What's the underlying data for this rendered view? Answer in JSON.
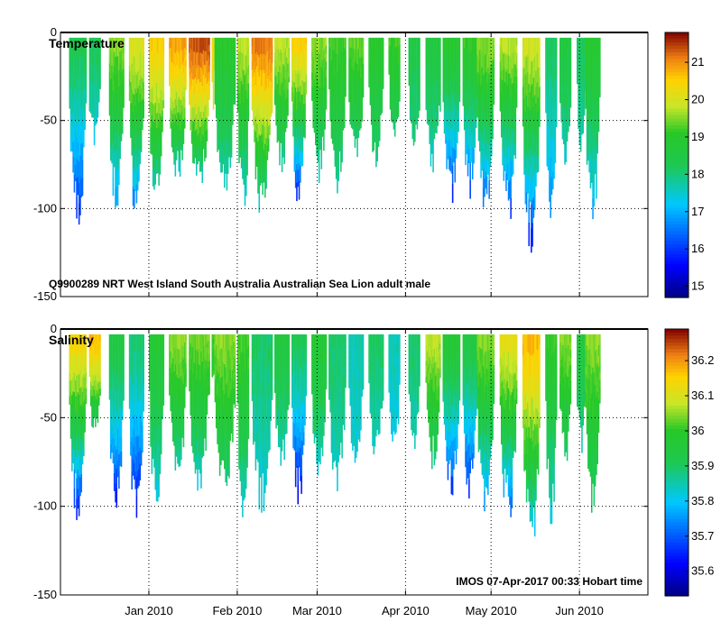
{
  "chart_data": [
    {
      "type": "heatmap",
      "title": "Temperature",
      "annotation": "Q9900289 NRT West Island South Australia Australian Sea Lion adult male",
      "xlabel": "",
      "ylabel": "",
      "ylim": [
        -150,
        0
      ],
      "y_ticks": [
        0,
        -50,
        -100,
        -150
      ],
      "y_tick_labels": [
        "0",
        "-50",
        "-100",
        "-150"
      ],
      "x_tick_labels": [
        "Jan 2010",
        "Feb 2010",
        "Mar 2010",
        "Apr 2010",
        "May 2010",
        "Jun 2010"
      ],
      "x_range_days": [
        0,
        206
      ],
      "x_tick_days": [
        31,
        62,
        90,
        121,
        151,
        182
      ],
      "colorbar": {
        "min": 14.7,
        "max": 21.8,
        "ticks": [
          15,
          16,
          17,
          18,
          19,
          20,
          21
        ],
        "tick_labels": [
          "15",
          "16",
          "17",
          "18",
          "19",
          "20",
          "21"
        ]
      },
      "dive_sessions": [
        {
          "start": 3,
          "end": 9,
          "max_depth": 110,
          "surface": 18.4,
          "deep": 15.6
        },
        {
          "start": 10,
          "end": 14,
          "max_depth": 66,
          "surface": 18.3,
          "deep": 17.2
        },
        {
          "start": 17,
          "end": 22,
          "max_depth": 105,
          "surface": 19.6,
          "deep": 16.4
        },
        {
          "start": 24,
          "end": 29,
          "max_depth": 112,
          "surface": 20.1,
          "deep": 15.8
        },
        {
          "start": 31,
          "end": 36,
          "max_depth": 102,
          "surface": 20.6,
          "deep": 16.8
        },
        {
          "start": 38,
          "end": 44,
          "max_depth": 86,
          "surface": 21.0,
          "deep": 17.0
        },
        {
          "start": 45,
          "end": 52,
          "max_depth": 92,
          "surface": 21.5,
          "deep": 16.8
        },
        {
          "start": 53,
          "end": 54,
          "max_depth": 0,
          "surface": 20.2,
          "deep": 20.2
        },
        {
          "start": 54,
          "end": 61,
          "max_depth": 94,
          "surface": 19.0,
          "deep": 17.4
        },
        {
          "start": 62,
          "end": 66,
          "max_depth": 108,
          "surface": 19.8,
          "deep": 16.7
        },
        {
          "start": 67,
          "end": 74,
          "max_depth": 106,
          "surface": 21.2,
          "deep": 17.0
        },
        {
          "start": 75,
          "end": 80,
          "max_depth": 82,
          "surface": 19.8,
          "deep": 17.4
        },
        {
          "start": 81,
          "end": 86,
          "max_depth": 101,
          "surface": 20.6,
          "deep": 15.0
        },
        {
          "start": 88,
          "end": 93,
          "max_depth": 88,
          "surface": 19.6,
          "deep": 17.2
        },
        {
          "start": 94,
          "end": 100,
          "max_depth": 92,
          "surface": 19.2,
          "deep": 17.6
        },
        {
          "start": 101,
          "end": 106,
          "max_depth": 80,
          "surface": 19.4,
          "deep": 17.4
        },
        {
          "start": 108,
          "end": 113,
          "max_depth": 77,
          "surface": 19.0,
          "deep": 17.8
        },
        {
          "start": 115,
          "end": 119,
          "max_depth": 70,
          "surface": 19.2,
          "deep": 17.6
        },
        {
          "start": 122,
          "end": 126,
          "max_depth": 70,
          "surface": 18.4,
          "deep": 17.8
        },
        {
          "start": 128,
          "end": 133,
          "max_depth": 80,
          "surface": 18.6,
          "deep": 17.4
        },
        {
          "start": 134,
          "end": 140,
          "max_depth": 98,
          "surface": 19.0,
          "deep": 15.6
        },
        {
          "start": 141,
          "end": 146,
          "max_depth": 97,
          "surface": 19.2,
          "deep": 15.8
        },
        {
          "start": 146,
          "end": 152,
          "max_depth": 108,
          "surface": 19.6,
          "deep": 15.8
        },
        {
          "start": 154,
          "end": 160,
          "max_depth": 110,
          "surface": 19.8,
          "deep": 15.4
        },
        {
          "start": 162,
          "end": 168,
          "max_depth": 128,
          "surface": 20.0,
          "deep": 15.2
        },
        {
          "start": 170,
          "end": 174,
          "max_depth": 112,
          "surface": 18.2,
          "deep": 16.4
        },
        {
          "start": 175,
          "end": 179,
          "max_depth": 80,
          "surface": 18.6,
          "deep": 17.4
        },
        {
          "start": 181,
          "end": 184,
          "max_depth": 72,
          "surface": 18.2,
          "deep": 17.6
        },
        {
          "start": 184,
          "end": 189,
          "max_depth": 108,
          "surface": 19.0,
          "deep": 16.8
        }
      ]
    },
    {
      "type": "heatmap",
      "title": "Salinity",
      "annotation": "IMOS 07-Apr-2017 00:33 Hobart time",
      "xlabel": "",
      "ylabel": "",
      "ylim": [
        -150,
        0
      ],
      "y_ticks": [
        0,
        -50,
        -100,
        -150
      ],
      "y_tick_labels": [
        "0",
        "-50",
        "-100",
        "-150"
      ],
      "x_tick_labels": [
        "Jan 2010",
        "Feb 2010",
        "Mar 2010",
        "Apr 2010",
        "May 2010",
        "Jun 2010"
      ],
      "x_range_days": [
        0,
        206
      ],
      "x_tick_days": [
        31,
        62,
        90,
        121,
        151,
        182
      ],
      "colorbar": {
        "min": 35.53,
        "max": 36.29,
        "ticks": [
          35.6,
          35.7,
          35.8,
          35.9,
          36,
          36.1,
          36.2
        ],
        "tick_labels": [
          "35.6",
          "35.7",
          "35.8",
          "35.9",
          "36",
          "36.1",
          "36.2"
        ]
      },
      "dive_sessions": [
        {
          "start": 3,
          "end": 9,
          "max_depth": 110,
          "surface": 36.15,
          "deep": 35.58
        },
        {
          "start": 10,
          "end": 14,
          "max_depth": 66,
          "surface": 36.18,
          "deep": 35.8
        },
        {
          "start": 17,
          "end": 22,
          "max_depth": 105,
          "surface": 35.95,
          "deep": 35.6
        },
        {
          "start": 24,
          "end": 29,
          "max_depth": 112,
          "surface": 35.9,
          "deep": 35.58
        },
        {
          "start": 31,
          "end": 36,
          "max_depth": 102,
          "surface": 35.98,
          "deep": 35.8
        },
        {
          "start": 38,
          "end": 44,
          "max_depth": 86,
          "surface": 36.05,
          "deep": 35.82
        },
        {
          "start": 45,
          "end": 52,
          "max_depth": 92,
          "surface": 36.04,
          "deep": 35.8
        },
        {
          "start": 53,
          "end": 54,
          "max_depth": 0,
          "surface": 36.0,
          "deep": 36.0
        },
        {
          "start": 54,
          "end": 61,
          "max_depth": 94,
          "surface": 36.05,
          "deep": 35.85
        },
        {
          "start": 62,
          "end": 66,
          "max_depth": 108,
          "surface": 36.02,
          "deep": 35.8
        },
        {
          "start": 67,
          "end": 74,
          "max_depth": 106,
          "surface": 35.9,
          "deep": 35.8
        },
        {
          "start": 75,
          "end": 80,
          "max_depth": 82,
          "surface": 35.95,
          "deep": 35.82
        },
        {
          "start": 81,
          "end": 86,
          "max_depth": 101,
          "surface": 35.92,
          "deep": 35.58
        },
        {
          "start": 88,
          "end": 93,
          "max_depth": 88,
          "surface": 35.98,
          "deep": 35.8
        },
        {
          "start": 94,
          "end": 100,
          "max_depth": 92,
          "surface": 35.9,
          "deep": 35.82
        },
        {
          "start": 101,
          "end": 106,
          "max_depth": 80,
          "surface": 35.85,
          "deep": 35.82
        },
        {
          "start": 108,
          "end": 113,
          "max_depth": 77,
          "surface": 35.9,
          "deep": 35.82
        },
        {
          "start": 115,
          "end": 119,
          "max_depth": 70,
          "surface": 35.85,
          "deep": 35.8
        },
        {
          "start": 122,
          "end": 126,
          "max_depth": 70,
          "surface": 35.9,
          "deep": 35.83
        },
        {
          "start": 128,
          "end": 133,
          "max_depth": 80,
          "surface": 36.08,
          "deep": 35.85
        },
        {
          "start": 134,
          "end": 140,
          "max_depth": 98,
          "surface": 35.98,
          "deep": 35.62
        },
        {
          "start": 141,
          "end": 146,
          "max_depth": 97,
          "surface": 35.95,
          "deep": 35.62
        },
        {
          "start": 146,
          "end": 152,
          "max_depth": 108,
          "surface": 36.05,
          "deep": 35.7
        },
        {
          "start": 154,
          "end": 160,
          "max_depth": 110,
          "surface": 36.12,
          "deep": 35.65
        },
        {
          "start": 162,
          "end": 168,
          "max_depth": 128,
          "surface": 36.18,
          "deep": 35.72
        },
        {
          "start": 170,
          "end": 174,
          "max_depth": 112,
          "surface": 36.0,
          "deep": 35.8
        },
        {
          "start": 175,
          "end": 179,
          "max_depth": 80,
          "surface": 36.05,
          "deep": 35.85
        },
        {
          "start": 181,
          "end": 184,
          "max_depth": 72,
          "surface": 35.95,
          "deep": 35.85
        },
        {
          "start": 184,
          "end": 189,
          "max_depth": 108,
          "surface": 36.05,
          "deep": 35.85
        }
      ]
    }
  ]
}
